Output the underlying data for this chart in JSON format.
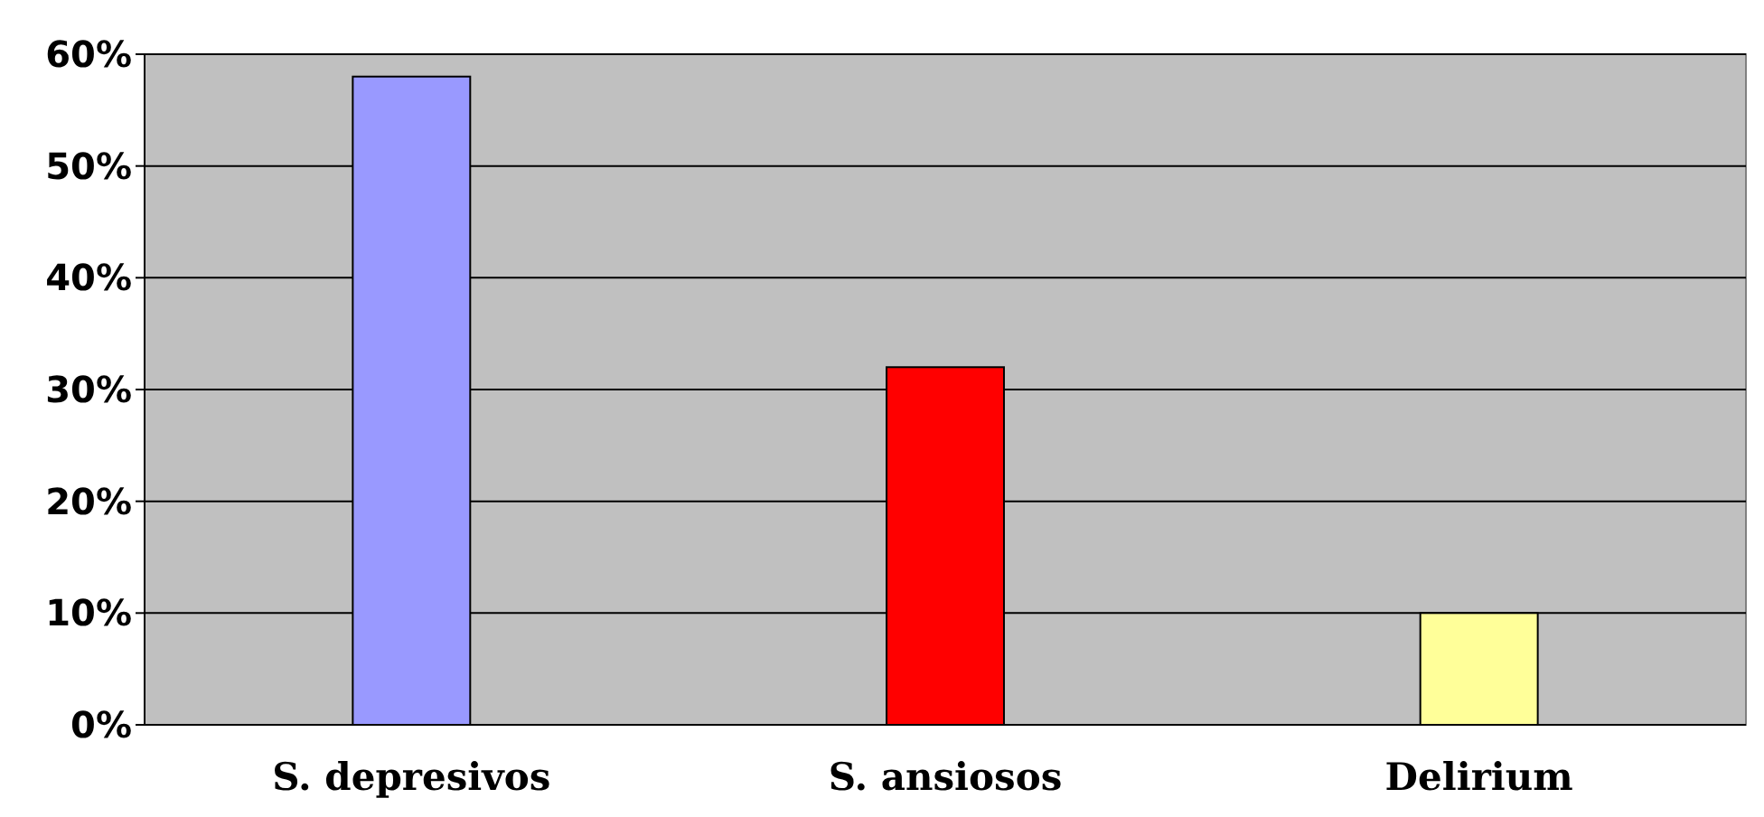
{
  "chart_data": {
    "type": "bar",
    "categories": [
      "S. depresivos",
      "S. ansiosos",
      "Delirium"
    ],
    "values": [
      58,
      32,
      10
    ],
    "colors": [
      "#9999ff",
      "#ff0000",
      "#ffff99"
    ],
    "ylim": [
      0,
      60
    ],
    "yticks": [
      {
        "value": 0,
        "label": "0%"
      },
      {
        "value": 10,
        "label": "10%"
      },
      {
        "value": 20,
        "label": "20%"
      },
      {
        "value": 30,
        "label": "30%"
      },
      {
        "value": 40,
        "label": "40%"
      },
      {
        "value": 50,
        "label": "50%"
      },
      {
        "value": 60,
        "label": "60%"
      }
    ],
    "grid": true
  }
}
